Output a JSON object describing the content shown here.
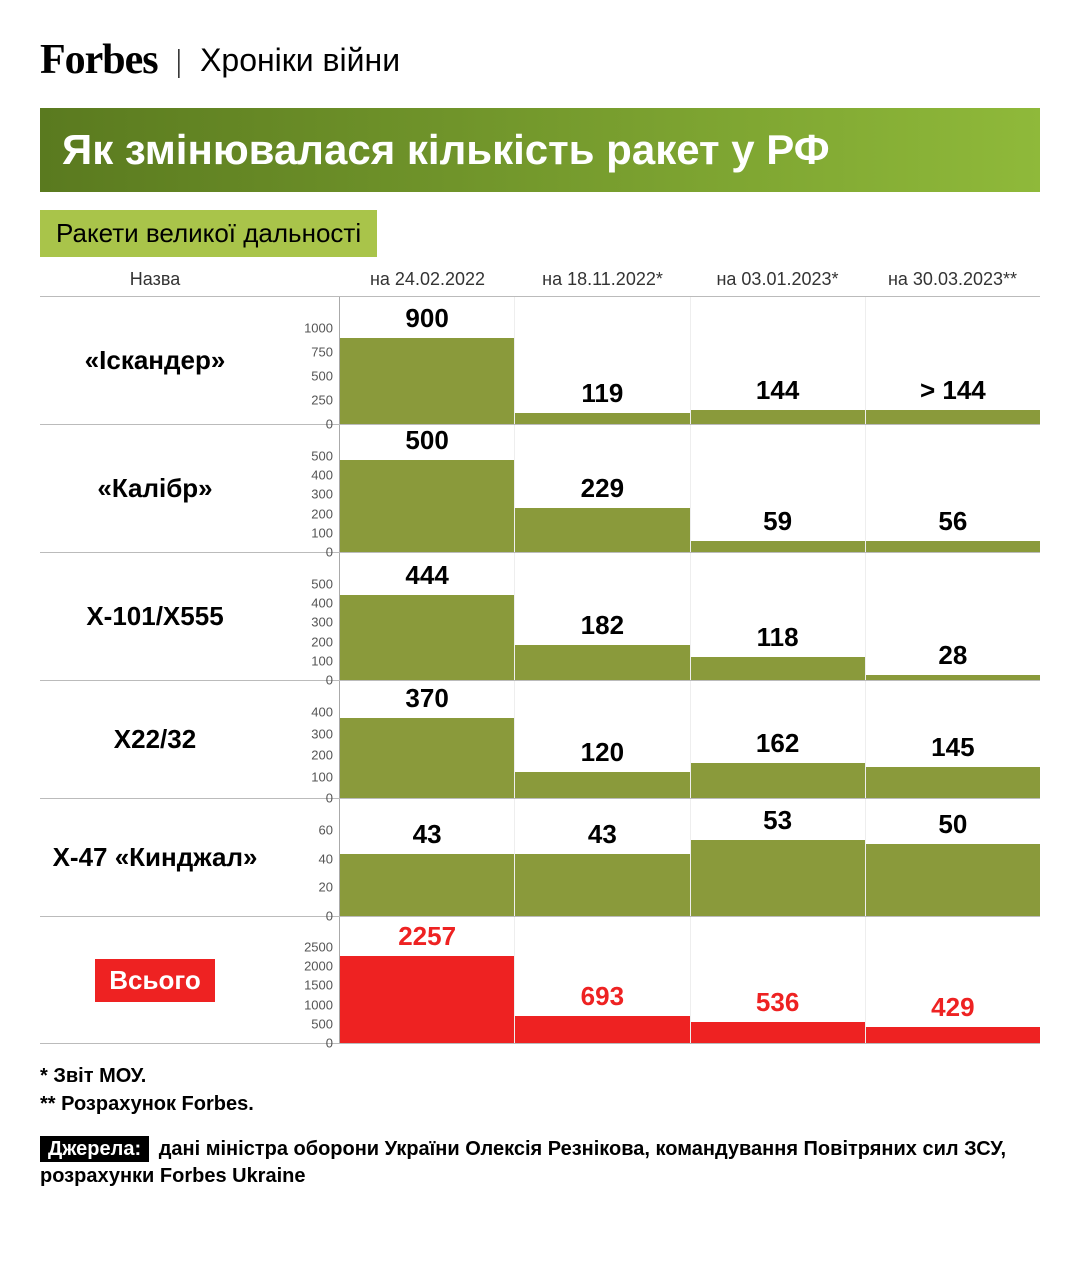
{
  "header": {
    "logo": "Forbes",
    "divider": "|",
    "section": "Хроніки війни"
  },
  "title": "Як змінювалася кількість ракет у РФ",
  "title_bg": "#5a7a1f",
  "title_gradient_end": "#8fb93a",
  "subtitle": "Ракети великої дальності",
  "subtitle_bg": "#a9c44a",
  "columns_header": {
    "name": "Назва",
    "dates": [
      "на 24.02.2022",
      "на 18.11.2022*",
      "на 03.01.2023*",
      "на 30.03.2023**"
    ]
  },
  "bar_color": "#8a9a3b",
  "total_bar_color": "#ee2222",
  "grid_color": "#cccccc",
  "rows": [
    {
      "name": "«Іскандер»",
      "ymax": 1000,
      "ytick_step": 250,
      "height": 128,
      "values": [
        900,
        119,
        144,
        144
      ],
      "labels": [
        "900",
        "119",
        "144",
        "> 144"
      ]
    },
    {
      "name": "«Калібр»",
      "ymax": 500,
      "ytick_step": 100,
      "height": 128,
      "values": [
        500,
        229,
        59,
        56
      ],
      "labels": [
        "500",
        "229",
        "59",
        "56"
      ]
    },
    {
      "name": "Х-101/Х555",
      "ymax": 500,
      "ytick_step": 100,
      "height": 128,
      "values": [
        444,
        182,
        118,
        28
      ],
      "labels": [
        "444",
        "182",
        "118",
        "28"
      ]
    },
    {
      "name": "Х22/32",
      "ymax": 400,
      "ytick_step": 100,
      "height": 118,
      "values": [
        370,
        120,
        162,
        145
      ],
      "labels": [
        "370",
        "120",
        "162",
        "145"
      ]
    },
    {
      "name": "Х-47 «Кинджал»",
      "ymax": 60,
      "ytick_step": 20,
      "height": 118,
      "values": [
        43,
        43,
        53,
        50
      ],
      "labels": [
        "43",
        "43",
        "53",
        "50"
      ]
    },
    {
      "name": "Всього",
      "is_total": true,
      "ymax": 2500,
      "ytick_step": 500,
      "height": 128,
      "values": [
        2257,
        693,
        536,
        429
      ],
      "labels": [
        "2257",
        "693",
        "536",
        "429"
      ]
    }
  ],
  "footnotes": [
    "* Звіт МОУ.",
    "** Розрахунок Forbes."
  ],
  "sources_label": "Джерела:",
  "sources_text": "дані міністра оборони України Олексія Резнікова, командування Повітряних сил ЗСУ, розрахунки Forbes Ukraine"
}
